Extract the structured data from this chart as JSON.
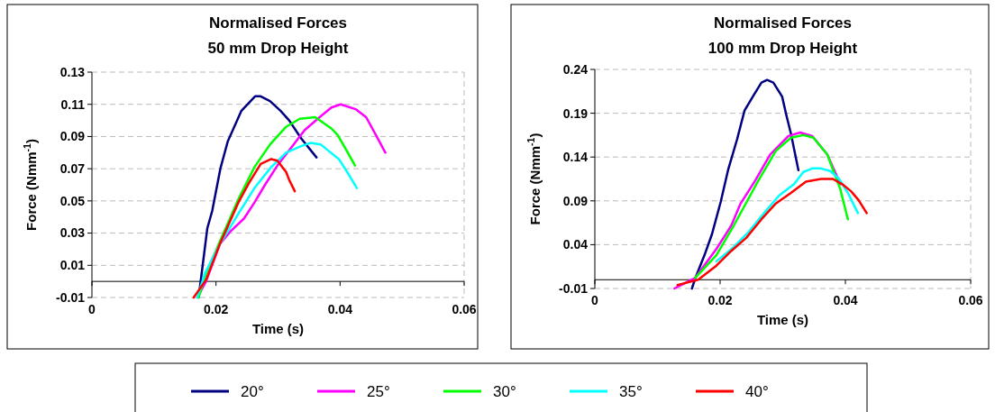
{
  "chart_data": [
    {
      "type": "line",
      "title": "Normalised Forces\n50 mm Drop Height",
      "xlabel": "Time (s)",
      "ylabel": "Force (Nmm$^{-1}$)",
      "xlim": [
        0,
        0.06
      ],
      "xticks": [
        0,
        0.02,
        0.04,
        0.06
      ],
      "ylim": [
        -0.01,
        0.13
      ],
      "yticks": [
        -0.01,
        0.01,
        0.03,
        0.05,
        0.07,
        0.09,
        0.11,
        0.13
      ],
      "grid": "y",
      "legend": "bottom",
      "marker": "none",
      "line_style": "solid",
      "series": [
        {
          "name": "20°",
          "color": "#000080",
          "x": [
            0.0172,
            0.0186,
            0.0194,
            0.0207,
            0.0219,
            0.0241,
            0.0263,
            0.0272,
            0.0287,
            0.0304,
            0.0318,
            0.0337,
            0.0362
          ],
          "values": [
            -0.01,
            0.033,
            0.044,
            0.07,
            0.087,
            0.106,
            0.115,
            0.115,
            0.112,
            0.106,
            0.1,
            0.089,
            0.077
          ]
        },
        {
          "name": "25°",
          "color": "#ff00ff",
          "x": [
            0.017,
            0.0184,
            0.0206,
            0.0223,
            0.0245,
            0.0262,
            0.0279,
            0.0299,
            0.0321,
            0.0343,
            0.0367,
            0.0386,
            0.0401,
            0.0425,
            0.0442,
            0.0459,
            0.0473
          ],
          "values": [
            -0.01,
            0,
            0.023,
            0.031,
            0.039,
            0.049,
            0.06,
            0.072,
            0.083,
            0.094,
            0.102,
            0.108,
            0.11,
            0.107,
            0.102,
            0.09,
            0.08
          ]
        },
        {
          "name": "30°",
          "color": "#00ff00",
          "x": [
            0.0172,
            0.0184,
            0.0211,
            0.0236,
            0.0262,
            0.0287,
            0.0313,
            0.0335,
            0.036,
            0.0386,
            0.0396,
            0.0411,
            0.0424
          ],
          "values": [
            -0.01,
            0.005,
            0.029,
            0.051,
            0.071,
            0.085,
            0.096,
            0.101,
            0.102,
            0.095,
            0.091,
            0.081,
            0.072
          ]
        },
        {
          "name": "35°",
          "color": "#00ffff",
          "x": [
            0.017,
            0.0182,
            0.0206,
            0.0236,
            0.0262,
            0.0289,
            0.0313,
            0.0337,
            0.0352,
            0.0369,
            0.0398,
            0.0413,
            0.0427
          ],
          "values": [
            -0.01,
            0.005,
            0.023,
            0.042,
            0.058,
            0.071,
            0.08,
            0.084,
            0.086,
            0.085,
            0.076,
            0.067,
            0.058
          ]
        },
        {
          "name": "40°",
          "color": "#ff0000",
          "x": [
            0.0164,
            0.0184,
            0.0206,
            0.0236,
            0.0253,
            0.0272,
            0.0289,
            0.0299,
            0.0313,
            0.0318,
            0.0327
          ],
          "values": [
            -0.01,
            0.001,
            0.023,
            0.049,
            0.061,
            0.073,
            0.076,
            0.075,
            0.068,
            0.063,
            0.056
          ]
        }
      ]
    },
    {
      "type": "line",
      "title": "Normalised Forces\n100 mm Drop Height",
      "xlabel": "Time (s)",
      "ylabel": "Force (Nmm$^{-1}$)",
      "xlim": [
        0,
        0.06
      ],
      "xticks": [
        0,
        0.02,
        0.04,
        0.06
      ],
      "ylim": [
        -0.01,
        0.24
      ],
      "yticks": [
        -0.01,
        0.04,
        0.09,
        0.14,
        0.19,
        0.24
      ],
      "grid": "y",
      "legend": "bottom",
      "marker": "none",
      "line_style": "solid",
      "series": [
        {
          "name": "20°",
          "color": "#000080",
          "x": [
            0.0155,
            0.016,
            0.0175,
            0.0187,
            0.0201,
            0.0213,
            0.0227,
            0.0239,
            0.0254,
            0.0266,
            0.0275,
            0.0285,
            0.0299,
            0.0306,
            0.0313,
            0.0325
          ],
          "values": [
            -0.01,
            0.001,
            0.028,
            0.052,
            0.089,
            0.126,
            0.16,
            0.193,
            0.211,
            0.225,
            0.228,
            0.225,
            0.209,
            0.187,
            0.167,
            0.125
          ]
        },
        {
          "name": "25°",
          "color": "#ff00ff",
          "x": [
            0.0127,
            0.016,
            0.0194,
            0.0218,
            0.0232,
            0.0256,
            0.028,
            0.0309,
            0.0328,
            0.0347,
            0.0371,
            0.0392
          ],
          "values": [
            -0.01,
            0.002,
            0.035,
            0.062,
            0.086,
            0.113,
            0.143,
            0.164,
            0.168,
            0.164,
            0.143,
            0.109
          ]
        },
        {
          "name": "30°",
          "color": "#00ff00",
          "x": [
            0.016,
            0.0194,
            0.0222,
            0.0261,
            0.0289,
            0.0313,
            0.0333,
            0.0349,
            0.0371,
            0.0392,
            0.0404
          ],
          "values": [
            0.002,
            0.028,
            0.062,
            0.113,
            0.147,
            0.162,
            0.165,
            0.162,
            0.143,
            0.103,
            0.069
          ]
        },
        {
          "name": "35°",
          "color": "#00ffff",
          "x": [
            0.0194,
            0.0218,
            0.0246,
            0.027,
            0.0294,
            0.0318,
            0.0333,
            0.0347,
            0.0361,
            0.0376,
            0.039,
            0.0404,
            0.042
          ],
          "values": [
            0.021,
            0.035,
            0.055,
            0.076,
            0.096,
            0.109,
            0.123,
            0.127,
            0.127,
            0.124,
            0.115,
            0.099,
            0.076
          ]
        },
        {
          "name": "40°",
          "color": "#ff0000",
          "x": [
            0.0132,
            0.0165,
            0.0194,
            0.0218,
            0.0242,
            0.0266,
            0.0289,
            0.0313,
            0.0337,
            0.0361,
            0.038,
            0.0395,
            0.0409,
            0.0421,
            0.0434
          ],
          "values": [
            -0.006,
            0,
            0.016,
            0.033,
            0.048,
            0.069,
            0.087,
            0.099,
            0.112,
            0.115,
            0.115,
            0.109,
            0.101,
            0.091,
            0.076
          ]
        }
      ]
    }
  ]
}
